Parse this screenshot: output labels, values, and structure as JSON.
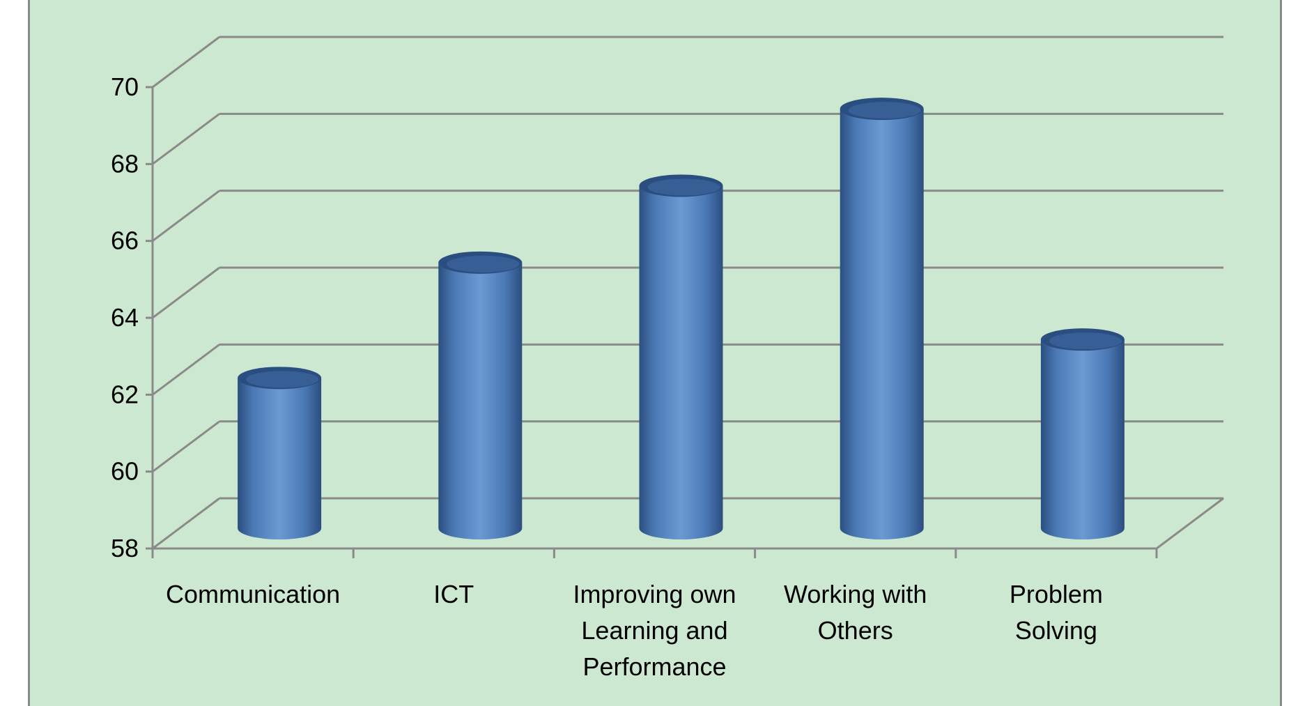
{
  "chart_data": {
    "type": "bar",
    "style": "3d-cylinder",
    "categories": [
      [
        "Communication"
      ],
      [
        "ICT"
      ],
      [
        "Improving own",
        "Learning and",
        "Performance"
      ],
      [
        "Working with",
        "Others"
      ],
      [
        "Problem",
        "Solving"
      ]
    ],
    "values": [
      62,
      65,
      67,
      69,
      63
    ],
    "ylim": [
      58,
      70
    ],
    "yticks": [
      58,
      60,
      62,
      64,
      66,
      68,
      70
    ],
    "title": "",
    "xlabel": "",
    "ylabel": "",
    "grid": true,
    "legend": "none",
    "colors": {
      "bar": "#4f81bd",
      "bar_dark": "#2b4e80",
      "bar_light": "#6b9ad3",
      "background": "#cce8d1",
      "grid": "#8a8a8a",
      "text": "#000000"
    }
  }
}
